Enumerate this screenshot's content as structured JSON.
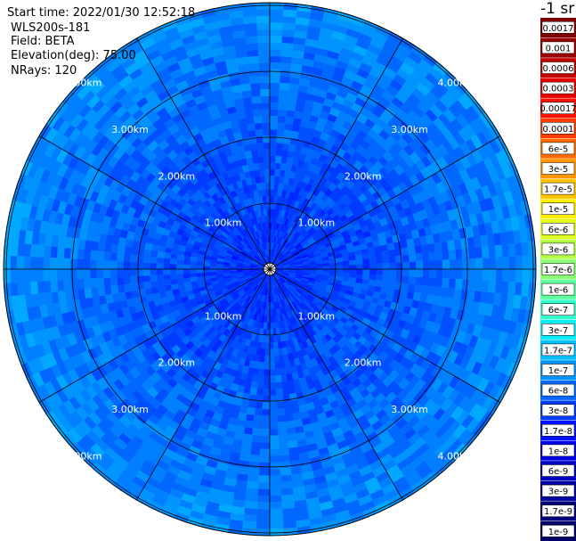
{
  "header": {
    "start_time": "Start time: 2022/01/30 12:52:18",
    "instrument": "WLS200s-181",
    "field": "Field: BETA",
    "elevation": "Elevation(deg): 75.00",
    "nrays": "NRays: 120"
  },
  "units_label": "-1 sr",
  "chart_data": {
    "type": "heatmap",
    "projection": "polar",
    "range_rings_km": [
      1,
      2,
      3,
      4
    ],
    "ring_labels": [
      "1.00km",
      "2.00km",
      "3.00km",
      "4.00km"
    ],
    "radial_lines_deg": [
      0,
      30,
      60,
      90,
      120,
      150,
      180,
      210,
      240,
      270,
      300,
      330
    ],
    "max_range_km": 4.0,
    "n_rays": 120,
    "colorbar": {
      "labels": [
        "0.0017",
        "0.001",
        "0.0006",
        "0.0003",
        "0.00017",
        "0.0001",
        "6e-5",
        "3e-5",
        "1.7e-5",
        "1e-5",
        "6e-6",
        "3e-6",
        "1.7e-6",
        "1e-6",
        "6e-7",
        "3e-7",
        "1.7e-7",
        "1e-7",
        "6e-8",
        "3e-8",
        "1.7e-8",
        "1e-8",
        "6e-9",
        "3e-9",
        "1.7e-9",
        "1e-9"
      ],
      "colors": [
        "#800000",
        "#9b0000",
        "#c30000",
        "#e80000",
        "#ff1000",
        "#ff3c00",
        "#ff6a00",
        "#ff9600",
        "#ffc300",
        "#fff000",
        "#e2ff1d",
        "#b6ff48",
        "#8aff74",
        "#5eff9f",
        "#32ffcc",
        "#06ecf8",
        "#00c0ff",
        "#0094ff",
        "#0068ff",
        "#003cff",
        "#0010ff",
        "#0000e6",
        "#0000c3",
        "#0000a0",
        "#00007d",
        "#000066"
      ],
      "gap_after_index": 3
    },
    "field_values": "log-scaled BETA, mostly 1e-8 to 6e-8 (blue), deeper blue near center"
  }
}
